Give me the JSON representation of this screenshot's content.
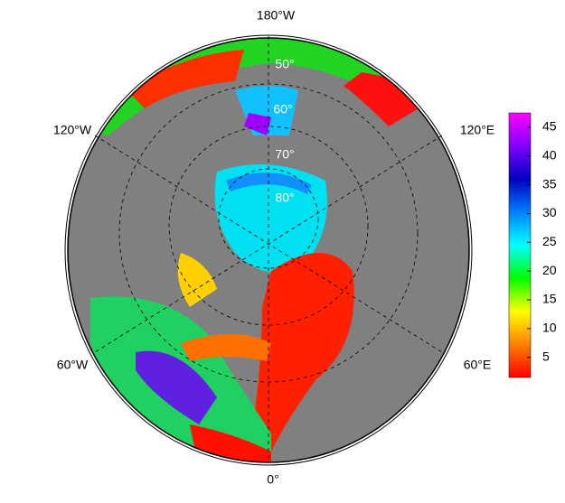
{
  "map": {
    "lon_labels": [
      "180°W",
      "120°W",
      "120°E",
      "60°W",
      "60°E",
      "0°"
    ],
    "lat_labels": [
      "50°",
      "60°",
      "70°",
      "80°"
    ]
  },
  "colorbar": {
    "lim": [
      1.5,
      47.5
    ],
    "ticks": [
      5,
      10,
      15,
      20,
      25,
      30,
      35,
      40,
      45
    ],
    "colors": [
      "#ff0000",
      "#ff8000",
      "#ffff00",
      "#00ff00",
      "#00ffff",
      "#0080ff",
      "#0000c0",
      "#8000ff",
      "#ff00ff"
    ]
  }
}
